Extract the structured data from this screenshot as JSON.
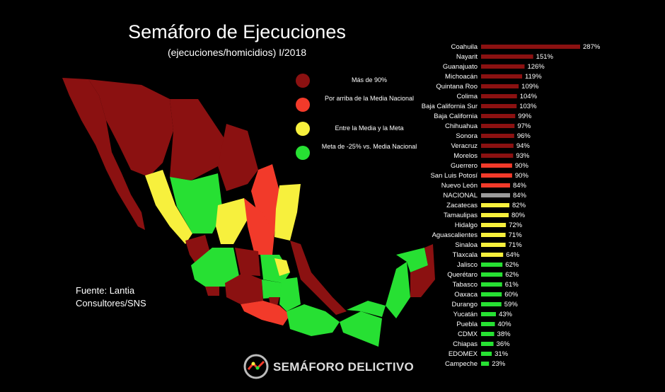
{
  "title": "Semáforo de Ejecuciones",
  "subtitle": "(ejecuciones/homicidios) I/2018",
  "legend": [
    {
      "label": "Más de 90%",
      "color": "#8b1111"
    },
    {
      "label": "Por arriba de la Media Nacional",
      "color": "#f23a2a"
    },
    {
      "label": "Entre la Media y la Meta",
      "color": "#f7f03d"
    },
    {
      "label": "Meta de -25% vs. Media Nacional",
      "color": "#27e033"
    }
  ],
  "source": "Fuente: Lantia Consultores/SNS",
  "brand": "SEMÁFORO DELICTIVO",
  "colors": {
    "dark_red": "#8b1111",
    "red": "#f23a2a",
    "yellow": "#f7f03d",
    "green": "#27e033",
    "gray": "#9a9a9a",
    "background": "#000000"
  },
  "chart_data": {
    "type": "bar",
    "orientation": "horizontal",
    "categories": [
      "Coahuila",
      "Nayarit",
      "Guanajuato",
      "Michoacán",
      "Quintana Roo",
      "Colima",
      "Baja California Sur",
      "Baja California",
      "Chihuahua",
      "Sonora",
      "Veracruz",
      "Morelos",
      "Guerrero",
      "San Luis Potosí",
      "Nuevo León",
      "NACIONAL",
      "Zacatecas",
      "Tamaulipas",
      "Hidalgo",
      "Aguascalientes",
      "Sinaloa",
      "Tlaxcala",
      "Jalisco",
      "Querétaro",
      "Tabasco",
      "Oaxaca",
      "Durango",
      "Yucatán",
      "Puebla",
      "CDMX",
      "Chiapas",
      "EDOMEX",
      "Campeche"
    ],
    "values": [
      287,
      151,
      126,
      119,
      109,
      104,
      103,
      99,
      97,
      96,
      94,
      93,
      90,
      90,
      84,
      84,
      82,
      80,
      72,
      71,
      71,
      64,
      62,
      62,
      61,
      60,
      59,
      43,
      40,
      38,
      36,
      31,
      23
    ],
    "value_labels": [
      "287%",
      "151%",
      "126%",
      "119%",
      "109%",
      "104%",
      "103%",
      "99%",
      "97%",
      "96%",
      "94%",
      "93%",
      "90%",
      "90%",
      "84%",
      "84%",
      "82%",
      "80%",
      "72%",
      "71%",
      "71%",
      "64%",
      "62%",
      "62%",
      "61%",
      "60%",
      "59%",
      "43%",
      "40%",
      "38%",
      "36%",
      "31%",
      "23%"
    ],
    "bar_colors": [
      "dark_red",
      "dark_red",
      "dark_red",
      "dark_red",
      "dark_red",
      "dark_red",
      "dark_red",
      "dark_red",
      "dark_red",
      "dark_red",
      "dark_red",
      "dark_red",
      "red",
      "red",
      "red",
      "gray",
      "yellow",
      "yellow",
      "yellow",
      "yellow",
      "yellow",
      "yellow",
      "green",
      "green",
      "green",
      "green",
      "green",
      "green",
      "green",
      "green",
      "green",
      "green",
      "green"
    ],
    "unit": "%",
    "xlim": [
      0,
      287
    ]
  }
}
